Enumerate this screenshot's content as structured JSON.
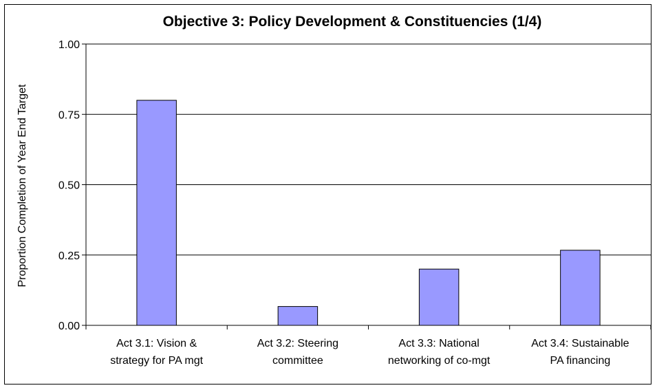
{
  "chart_data": {
    "type": "bar",
    "title": "Objective 3: Policy Development & Constituencies (1/4)",
    "xlabel": "",
    "ylabel": "Proportion Completion of Year End Target",
    "ylim": [
      0,
      1.0
    ],
    "yticks": [
      "0.00",
      "0.25",
      "0.50",
      "0.75",
      "1.00"
    ],
    "ytick_values": [
      0,
      0.25,
      0.5,
      0.75,
      1.0
    ],
    "categories": [
      [
        "Act 3.1: Vision &",
        "strategy for PA mgt"
      ],
      [
        "Act 3.2: Steering",
        "committee"
      ],
      [
        "Act 3.3: National",
        "networking of co-mgt"
      ],
      [
        "Act 3.4: Sustainable",
        "PA financing"
      ]
    ],
    "values": [
      0.8,
      0.067,
      0.2,
      0.267
    ],
    "grid": true,
    "legend": "none",
    "colors": {
      "bar_fill": "#9999ff",
      "bar_stroke": "#000000",
      "plot_background": "#ffffff",
      "gridline": "#000000"
    }
  }
}
